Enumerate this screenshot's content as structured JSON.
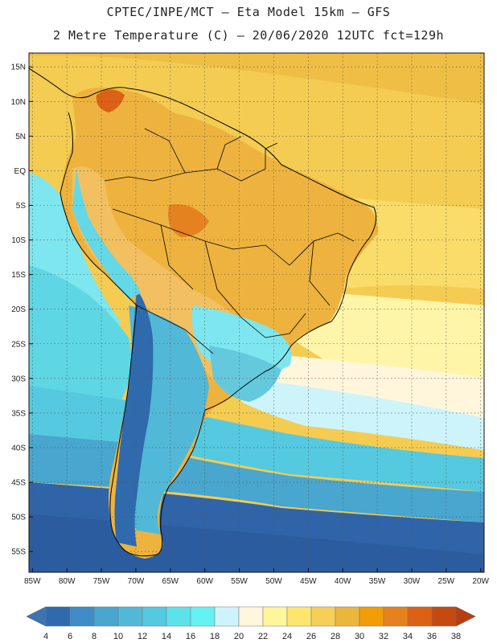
{
  "header": {
    "line1": "CPTEC/INPE/MCT –  Eta Model 15km – GFS",
    "line2": "2 Metre Temperature (C) – 20/06/2020 12UTC fct=129h"
  },
  "map": {
    "lon_range": [
      -85.5,
      -19.5
    ],
    "lat_range": [
      -58,
      17
    ],
    "lat_ticks": [
      "15N",
      "10N",
      "5N",
      "EQ",
      "5S",
      "10S",
      "15S",
      "20S",
      "25S",
      "30S",
      "35S",
      "40S",
      "45S",
      "50S",
      "55S"
    ],
    "lat_values": [
      15,
      10,
      5,
      0,
      -5,
      -10,
      -15,
      -20,
      -25,
      -30,
      -35,
      -40,
      -45,
      -50,
      -55
    ],
    "lon_ticks": [
      "85W",
      "80W",
      "75W",
      "70W",
      "65W",
      "60W",
      "55W",
      "50W",
      "45W",
      "40W",
      "35W",
      "30W",
      "25W",
      "20W"
    ],
    "lon_values": [
      -85,
      -80,
      -75,
      -70,
      -65,
      -60,
      -55,
      -50,
      -45,
      -40,
      -35,
      -30,
      -25,
      -20
    ]
  },
  "colorbar": {
    "labels": [
      "4",
      "6",
      "8",
      "10",
      "12",
      "14",
      "16",
      "18",
      "20",
      "22",
      "24",
      "26",
      "28",
      "30",
      "32",
      "34",
      "36",
      "38"
    ],
    "colors": [
      "#3b74b5",
      "#2f6aad",
      "#3f8cc6",
      "#48a6cf",
      "#52b8d8",
      "#55c9df",
      "#5ee2ea",
      "#64f2f2",
      "#cdf4fb",
      "#fff6dc",
      "#fff59a",
      "#fee66e",
      "#f6cf58",
      "#eab63c",
      "#f19d05",
      "#e5821f",
      "#dc6115",
      "#c54a12",
      "#b83d0e"
    ]
  }
}
